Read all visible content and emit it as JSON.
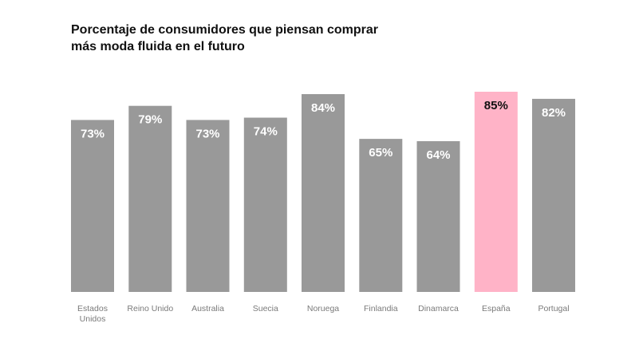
{
  "title_lines": [
    "Porcentaje de consumidores que piensan comprar",
    "más moda fluida en el futuro"
  ],
  "colors": {
    "default_bar": "#999999",
    "highlight_bar": "#ffb3c7",
    "default_label": "#ffffff",
    "highlight_label": "#111111",
    "category_text": "#7a7a7a"
  },
  "chart_data": {
    "type": "bar",
    "title": "Porcentaje de consumidores que piensan comprar más moda fluida en el futuro",
    "categories": [
      [
        "Estados",
        "Unidos"
      ],
      [
        "Reino Unido"
      ],
      [
        "Australia"
      ],
      [
        "Suecia"
      ],
      [
        "Noruega"
      ],
      [
        "Finlandia"
      ],
      [
        "Dinamarca"
      ],
      [
        "España"
      ],
      [
        "Portugal"
      ]
    ],
    "values": [
      73,
      79,
      73,
      74,
      84,
      65,
      64,
      85,
      82
    ],
    "value_labels": [
      "73%",
      "79%",
      "73%",
      "74%",
      "84%",
      "65%",
      "64%",
      "85%",
      "82%"
    ],
    "highlight": "España",
    "ylim": [
      0,
      100
    ],
    "grid": false,
    "legend": "none"
  }
}
